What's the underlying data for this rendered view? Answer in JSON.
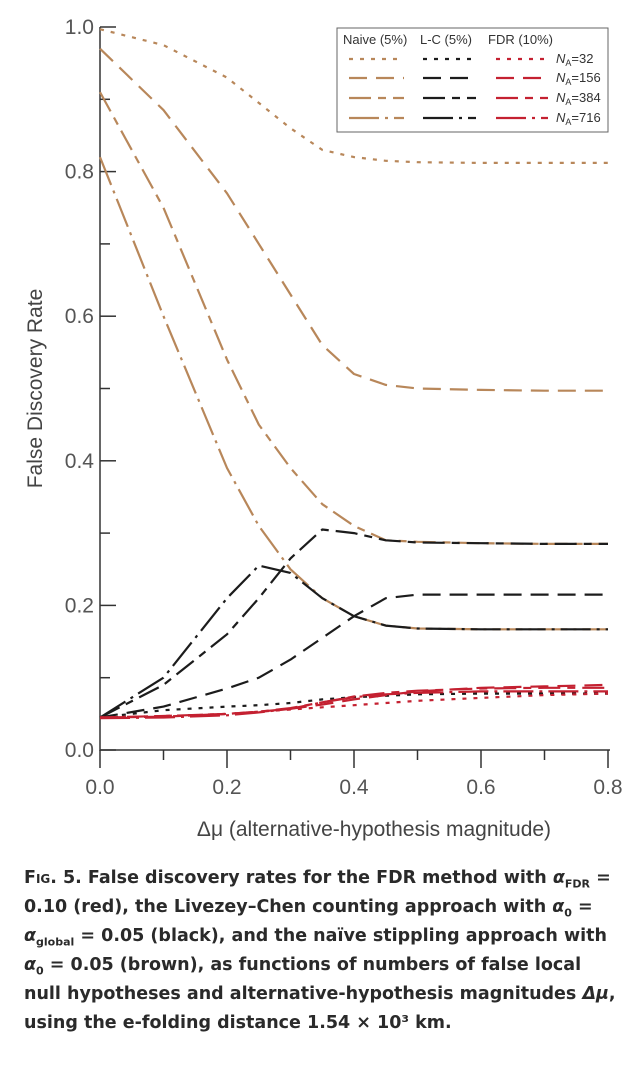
{
  "chart_data": {
    "type": "line",
    "title": "",
    "xlabel": "Δμ (alternative-hypothesis magnitude)",
    "ylabel": "False Discovery Rate",
    "xlim": [
      0.0,
      0.8
    ],
    "ylim": [
      0.0,
      1.0
    ],
    "x_ticks": [
      "0.0",
      "0.2",
      "0.4",
      "0.6",
      "0.8"
    ],
    "y_ticks": [
      "0.0",
      "0.2",
      "0.4",
      "0.6",
      "0.8",
      "1.0"
    ],
    "grid": false,
    "legend_position": "top-right",
    "legend": {
      "method_headers": [
        "Naive (5%)",
        "L-C (5%)",
        "FDR (10%)"
      ],
      "na_labels": [
        "32",
        "156",
        "384",
        "716"
      ],
      "na_prefix": "N",
      "na_sub": "A",
      "methods": [
        {
          "name": "Naive (5%)",
          "color": "#b8875a"
        },
        {
          "name": "L-C (5%)",
          "color": "#1c1c1c"
        },
        {
          "name": "FDR (10%)",
          "color": "#c42131"
        }
      ],
      "dash_styles": [
        "4 7",
        "18 9",
        "22 7 8 7",
        "30 6 3 6"
      ]
    },
    "x": [
      0.0,
      0.1,
      0.2,
      0.25,
      0.3,
      0.35,
      0.4,
      0.45,
      0.5,
      0.6,
      0.7,
      0.8
    ],
    "series": [
      {
        "method": "Naive (5%)",
        "na": "32",
        "values": [
          0.997,
          0.975,
          0.93,
          0.895,
          0.86,
          0.83,
          0.82,
          0.815,
          0.813,
          0.812,
          0.812,
          0.812
        ]
      },
      {
        "method": "Naive (5%)",
        "na": "156",
        "values": [
          0.97,
          0.885,
          0.77,
          0.7,
          0.63,
          0.56,
          0.52,
          0.505,
          0.5,
          0.498,
          0.497,
          0.497
        ]
      },
      {
        "method": "Naive (5%)",
        "na": "384",
        "values": [
          0.91,
          0.75,
          0.54,
          0.45,
          0.39,
          0.34,
          0.31,
          0.29,
          0.288,
          0.286,
          0.285,
          0.285
        ]
      },
      {
        "method": "Naive (5%)",
        "na": "716",
        "values": [
          0.82,
          0.6,
          0.39,
          0.31,
          0.25,
          0.21,
          0.185,
          0.172,
          0.168,
          0.167,
          0.167,
          0.167
        ]
      },
      {
        "method": "L-C (5%)",
        "na": "32",
        "values": [
          0.045,
          0.055,
          0.06,
          0.062,
          0.065,
          0.07,
          0.073,
          0.075,
          0.077,
          0.078,
          0.078,
          0.078
        ]
      },
      {
        "method": "L-C (5%)",
        "na": "156",
        "values": [
          0.045,
          0.06,
          0.085,
          0.1,
          0.125,
          0.155,
          0.185,
          0.21,
          0.215,
          0.215,
          0.215,
          0.215
        ]
      },
      {
        "method": "L-C (5%)",
        "na": "384",
        "values": [
          0.045,
          0.09,
          0.16,
          0.21,
          0.265,
          0.305,
          0.3,
          0.29,
          0.287,
          0.286,
          0.285,
          0.285
        ]
      },
      {
        "method": "L-C (5%)",
        "na": "716",
        "values": [
          0.045,
          0.1,
          0.21,
          0.255,
          0.245,
          0.21,
          0.185,
          0.172,
          0.168,
          0.167,
          0.167,
          0.167
        ]
      },
      {
        "method": "FDR (10%)",
        "na": "32",
        "values": [
          0.045,
          0.047,
          0.05,
          0.053,
          0.056,
          0.059,
          0.062,
          0.065,
          0.068,
          0.072,
          0.076,
          0.078
        ]
      },
      {
        "method": "FDR (10%)",
        "na": "156",
        "values": [
          0.045,
          0.047,
          0.05,
          0.053,
          0.057,
          0.063,
          0.07,
          0.076,
          0.081,
          0.086,
          0.088,
          0.09
        ]
      },
      {
        "method": "FDR (10%)",
        "na": "384",
        "values": [
          0.045,
          0.046,
          0.05,
          0.053,
          0.058,
          0.066,
          0.074,
          0.079,
          0.082,
          0.085,
          0.086,
          0.086
        ]
      },
      {
        "method": "FDR (10%)",
        "na": "716",
        "values": [
          0.044,
          0.045,
          0.048,
          0.052,
          0.057,
          0.066,
          0.073,
          0.077,
          0.079,
          0.081,
          0.081,
          0.081
        ]
      }
    ]
  },
  "caption": {
    "lead": "Fig. 5.",
    "part1": " False discovery rates for the FDR method with ",
    "alpha": "α",
    "sub_fdr": "FDR",
    "part2": " = 0.10 (red), the Livezey–Chen counting approach with ",
    "sub_0": "0",
    "part3": " = ",
    "sub_global": "global",
    "part4": " = 0.05 (black), and the naïve stippling approach with ",
    "part5": " = 0.05 (brown), as functions of numbers of false local null hypotheses and alternative-hypothesis magnitudes ",
    "delta_mu": "Δμ",
    "part6": ", using the e-folding distance 1.54 × 10³ km."
  }
}
